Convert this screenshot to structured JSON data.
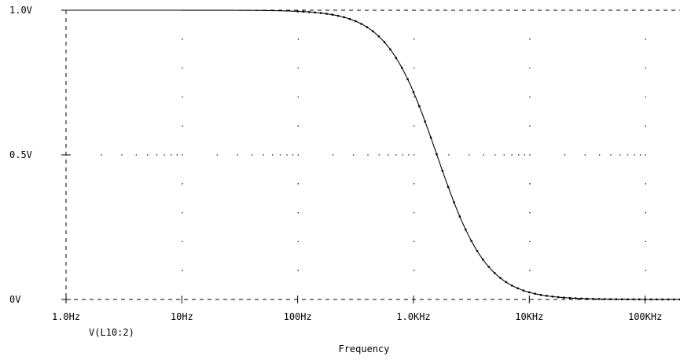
{
  "chart_data": {
    "type": "line",
    "xlabel": "Frequency",
    "ylabel": "",
    "xscale": "log",
    "xlim": [
      1,
      200000
    ],
    "ylim": [
      0,
      1.0
    ],
    "grid": "dotted",
    "x_ticks": [
      {
        "value": 1,
        "label": "1.0Hz"
      },
      {
        "value": 10,
        "label": "10Hz"
      },
      {
        "value": 100,
        "label": "100Hz"
      },
      {
        "value": 1000,
        "label": "1.0KHz"
      },
      {
        "value": 10000,
        "label": "10KHz"
      },
      {
        "value": 100000,
        "label": "100KHz"
      }
    ],
    "y_ticks": [
      {
        "value": 0,
        "label": "0V"
      },
      {
        "value": 0.5,
        "label": "0.5V"
      },
      {
        "value": 1.0,
        "label": "1.0V"
      }
    ],
    "legend": "bottom-left",
    "series": [
      {
        "name": "V(L10:2)",
        "color": "#000000",
        "cutoff_hz": 1592,
        "x": [
          1,
          10,
          100,
          200,
          300,
          400,
          500,
          600,
          700,
          800,
          900,
          1000,
          1100,
          1200,
          1300,
          1400,
          1500,
          1600,
          1800,
          2000,
          2200,
          2500,
          3000,
          3500,
          4000,
          5000,
          6000,
          7000,
          8000,
          10000,
          15000,
          20000,
          50000,
          100000,
          200000
        ],
        "y": [
          1.0,
          1.0,
          1.0,
          0.9998,
          0.9988,
          0.9961,
          0.9905,
          0.9806,
          0.9646,
          0.9415,
          0.9101,
          0.8705,
          0.8233,
          0.7707,
          0.715,
          0.6586,
          0.6038,
          0.5518,
          0.4592,
          0.3817,
          0.3192,
          0.2441,
          0.1615,
          0.1112,
          0.0799,
          0.0449,
          0.0277,
          0.0183,
          0.0128,
          0.0067,
          0.002,
          0.0008,
          0.0001,
          0.0,
          0.0
        ]
      }
    ]
  }
}
